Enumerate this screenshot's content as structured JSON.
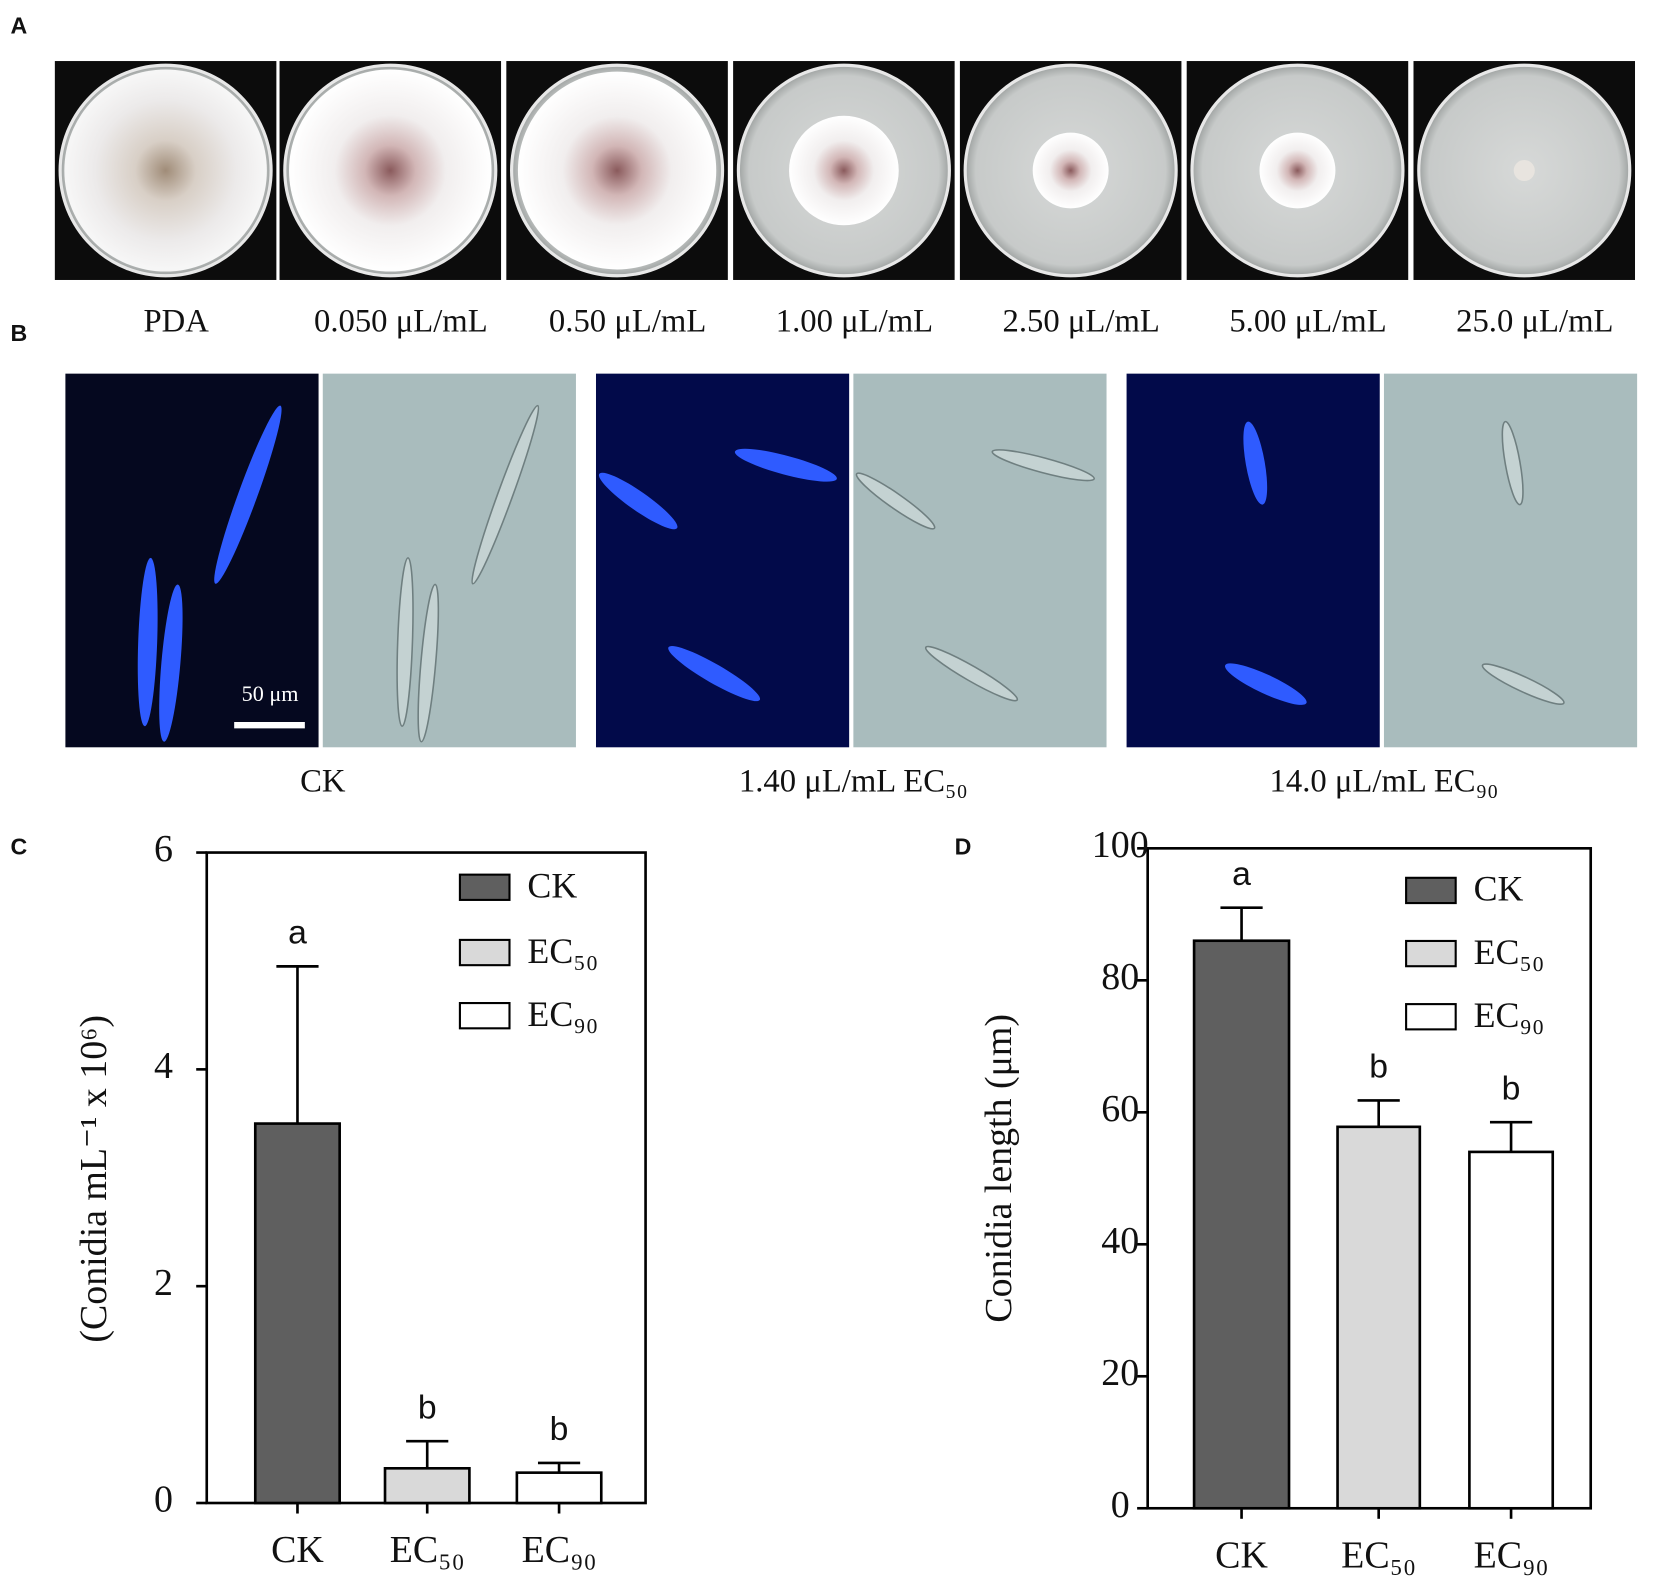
{
  "panel_labels": [
    "A",
    "B",
    "C",
    "D"
  ],
  "dish_labels": [
    "PDA",
    "0.050 μL/mL",
    "0.50 μL/mL",
    "1.00 μL/mL",
    "2.50 μL/mL",
    "5.00 μL/mL",
    "25.0 μL/mL"
  ],
  "micrograph_labels": [
    "CK",
    "1.40 μL/mL EC₅₀",
    "14.0 μL/mL EC₉₀"
  ],
  "scale_bar": "50 μm",
  "chart_data": [
    {
      "type": "bar",
      "y_label": "(Conidia mL⁻¹ x 10⁶)",
      "categories": [
        "CK",
        "EC₅₀",
        "EC₉₀"
      ],
      "values": [
        3.5,
        0.32,
        0.28
      ],
      "errors": [
        1.45,
        0.25,
        0.09
      ],
      "letters": [
        "a",
        "b",
        "b"
      ],
      "colors": [
        "#5f5f5f",
        "#d9d9d9",
        "#ffffff"
      ],
      "legend": [
        "CK",
        "EC₅₀",
        "EC₉₀"
      ],
      "legend_position": "upper right",
      "ylim": [
        0,
        6
      ],
      "yticks": [
        0,
        2,
        4,
        6
      ]
    },
    {
      "type": "bar",
      "y_label": "Conidia length (μm)",
      "categories": [
        "CK",
        "EC₅₀",
        "EC₉₀"
      ],
      "values": [
        86,
        57.8,
        54
      ],
      "errors": [
        5,
        4,
        4.5
      ],
      "letters": [
        "a",
        "b",
        "b"
      ],
      "colors": [
        "#5f5f5f",
        "#d9d9d9",
        "#ffffff"
      ],
      "legend": [
        "CK",
        "EC₅₀",
        "EC₉₀"
      ],
      "legend_position": "upper right",
      "ylim": [
        0,
        100
      ],
      "yticks": [
        0,
        20,
        40,
        60,
        80,
        100
      ]
    }
  ]
}
